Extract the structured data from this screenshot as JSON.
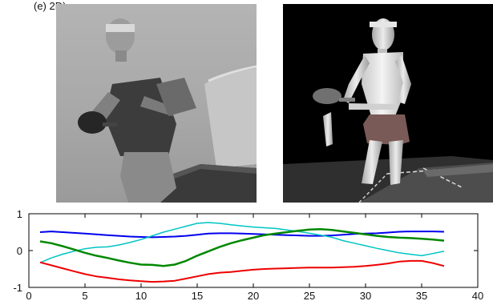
{
  "caption": "(e) 2D)",
  "panels": {
    "left": {
      "kind": "photo",
      "subject": "table-tennis-player-photo"
    },
    "right": {
      "kind": "render",
      "subject": "3d-model-player-render"
    }
  },
  "chart_data": {
    "type": "line",
    "title": "",
    "xlabel": "",
    "ylabel": "",
    "xlim": [
      0,
      40
    ],
    "ylim": [
      -1,
      1
    ],
    "xticks": [
      0,
      5,
      10,
      15,
      20,
      25,
      30,
      35,
      40
    ],
    "yticks": [
      -1,
      0,
      1
    ],
    "grid": false,
    "legend": "none",
    "x": [
      1,
      2,
      3,
      4,
      5,
      6,
      7,
      8,
      9,
      10,
      11,
      12,
      13,
      14,
      15,
      16,
      17,
      18,
      19,
      20,
      21,
      22,
      23,
      24,
      25,
      26,
      27,
      28,
      29,
      30,
      31,
      32,
      33,
      34,
      35,
      36,
      37
    ],
    "series": [
      {
        "color": "#0000ee",
        "stroke_width": 2,
        "values": [
          0.5,
          0.52,
          0.5,
          0.48,
          0.46,
          0.44,
          0.42,
          0.4,
          0.38,
          0.37,
          0.36,
          0.37,
          0.38,
          0.4,
          0.43,
          0.46,
          0.47,
          0.47,
          0.46,
          0.45,
          0.44,
          0.43,
          0.42,
          0.41,
          0.4,
          0.4,
          0.41,
          0.43,
          0.45,
          0.46,
          0.47,
          0.49,
          0.51,
          0.52,
          0.52,
          0.52,
          0.51
        ]
      },
      {
        "color": "#00c4c4",
        "stroke_width": 1.5,
        "values": [
          -0.33,
          -0.2,
          -0.1,
          -0.02,
          0.05,
          0.09,
          0.1,
          0.15,
          0.22,
          0.3,
          0.4,
          0.5,
          0.58,
          0.66,
          0.74,
          0.76,
          0.74,
          0.7,
          0.67,
          0.64,
          0.62,
          0.6,
          0.56,
          0.52,
          0.47,
          0.42,
          0.36,
          0.27,
          0.2,
          0.13,
          0.06,
          0.0,
          -0.06,
          -0.1,
          -0.14,
          -0.08,
          -0.02
        ]
      },
      {
        "color": "#008800",
        "stroke_width": 2.5,
        "values": [
          0.25,
          0.2,
          0.12,
          0.03,
          -0.06,
          -0.14,
          -0.2,
          -0.27,
          -0.33,
          -0.38,
          -0.39,
          -0.42,
          -0.38,
          -0.28,
          -0.14,
          -0.02,
          0.1,
          0.2,
          0.28,
          0.35,
          0.42,
          0.46,
          0.5,
          0.54,
          0.57,
          0.58,
          0.56,
          0.52,
          0.48,
          0.44,
          0.4,
          0.37,
          0.35,
          0.34,
          0.32,
          0.3,
          0.27
        ]
      },
      {
        "color": "#ee0000",
        "stroke_width": 2,
        "values": [
          -0.32,
          -0.4,
          -0.48,
          -0.56,
          -0.64,
          -0.7,
          -0.74,
          -0.78,
          -0.81,
          -0.83,
          -0.85,
          -0.84,
          -0.82,
          -0.76,
          -0.7,
          -0.64,
          -0.6,
          -0.58,
          -0.55,
          -0.52,
          -0.5,
          -0.49,
          -0.48,
          -0.47,
          -0.46,
          -0.46,
          -0.46,
          -0.45,
          -0.44,
          -0.42,
          -0.39,
          -0.35,
          -0.3,
          -0.28,
          -0.28,
          -0.34,
          -0.42
        ]
      }
    ]
  }
}
